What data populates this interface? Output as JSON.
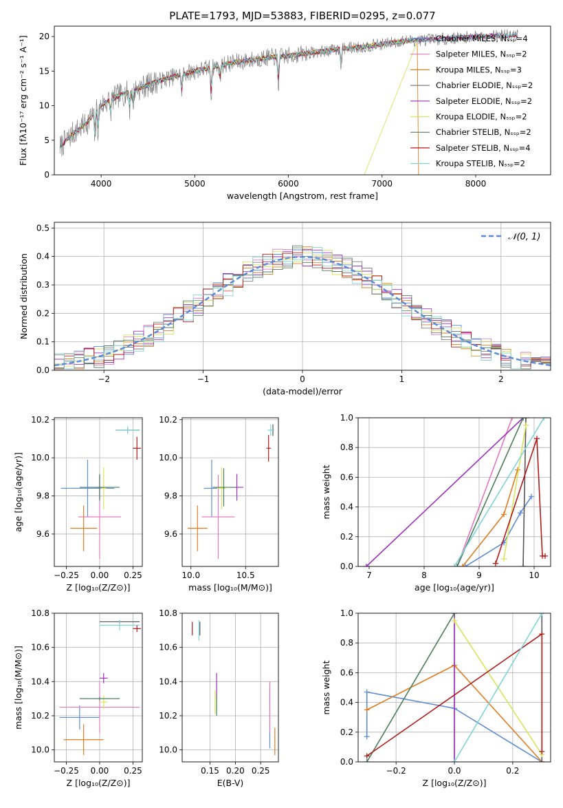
{
  "chart_data": [
    {
      "id": "spectrum",
      "type": "line",
      "title": "PLATE=1793, MJD=53883, FIBERID=0295, z=0.077",
      "xlabel": "wavelength [Angstrom, rest frame]",
      "ylabel": "Flux [fλ10⁻¹⁷ erg cm⁻² s⁻¹ A⁻¹]",
      "xlim": [
        3500,
        8800
      ],
      "ylim": [
        0,
        21.5
      ],
      "xticks": [
        4000,
        5000,
        6000,
        7000,
        8000
      ],
      "yticks": [
        0,
        5,
        10,
        15,
        20
      ],
      "grid": false,
      "legend_position": "top-right",
      "data_continuum": {
        "x": [
          3560,
          3700,
          3850,
          3950,
          4050,
          4200,
          4400,
          4600,
          4800,
          5000,
          5200,
          5400,
          5600,
          5800,
          6000,
          6200,
          6400,
          6600,
          6800,
          7000,
          7200,
          7400,
          7600,
          7800,
          8000,
          8200,
          8450
        ],
        "y": [
          4.0,
          6.0,
          7.5,
          9.5,
          10.5,
          11.5,
          12.5,
          13.5,
          14.3,
          15.0,
          15.6,
          16.2,
          16.6,
          17.0,
          17.2,
          17.6,
          17.9,
          18.3,
          18.5,
          18.9,
          19.3,
          19.5,
          19.6,
          19.8,
          20.0,
          20.1,
          20.2
        ]
      },
      "series": [
        {
          "name": "Chabrier MILES, Nₛₛₚ=4",
          "color": "#5b8ad6"
        },
        {
          "name": "Salpeter MILES, Nₛₛₚ=2",
          "color": "#e377c2"
        },
        {
          "name": "Kroupa MILES, Nₛₛₚ=3",
          "color": "#e07b20"
        },
        {
          "name": "Chabrier ELODIE, Nₛₛₚ=2",
          "color": "#7f7f7f"
        },
        {
          "name": "Salpeter ELODIE, Nₛₛₚ=2",
          "color": "#9b30c0"
        },
        {
          "name": "Kroupa ELODIE, Nₛₛₚ=2",
          "color": "#d8e35a"
        },
        {
          "name": "Chabrier STELIB, Nₛₛₚ=2",
          "color": "#4a7c59"
        },
        {
          "name": "Salpeter STELIB, Nₛₛₚ=4",
          "color": "#b01818"
        },
        {
          "name": "Kroupa STELIB, Nₛₛₚ=2",
          "color": "#7fd4d8"
        }
      ]
    },
    {
      "id": "residuals",
      "type": "line",
      "xlabel": "(data-model)/error",
      "ylabel": "Normed distribution",
      "xlim": [
        -2.5,
        2.5
      ],
      "ylim": [
        0,
        0.52
      ],
      "xticks": [
        -2,
        -1,
        0,
        1,
        2
      ],
      "yticks": [
        0.0,
        0.1,
        0.2,
        0.3,
        0.4,
        0.5
      ],
      "grid": true,
      "legend_position": "top-right",
      "reference": {
        "name": "𝒩(0, 1)",
        "mean": 0,
        "sigma": 1,
        "color": "#5b8ad6",
        "style": "dashed"
      },
      "histograms": "step histograms for each of the nine model fits, closely following the unit Gaussian"
    },
    {
      "id": "age-vs-Z",
      "type": "scatter",
      "xlabel": "Z [log₁₀(Z/Z⊙)]",
      "ylabel": "age  [log₁₀(age/yr)]",
      "xlim": [
        -0.34,
        0.32
      ],
      "ylim": [
        9.43,
        10.21
      ],
      "xticks": [
        -0.25,
        0.0,
        0.25
      ],
      "yticks": [
        9.6,
        9.8,
        10.0,
        10.2
      ],
      "grid": true,
      "points": [
        {
          "series": "Chabrier MILES",
          "x": -0.09,
          "xerr": 0.2,
          "y": 9.84,
          "yerr": 0.15,
          "color": "#5b8ad6"
        },
        {
          "series": "Salpeter MILES",
          "x": 0.0,
          "xerr": 0.16,
          "y": 9.69,
          "yerr": 0.22,
          "color": "#e377c2"
        },
        {
          "series": "Kroupa MILES",
          "x": -0.12,
          "xerr": 0.1,
          "y": 9.63,
          "yerr": 0.12,
          "color": "#e07b20"
        },
        {
          "series": "Chabrier ELODIE",
          "x": 0.21,
          "xerr": 0.09,
          "y": 10.145,
          "yerr": 0.01,
          "color": "#555555"
        },
        {
          "series": "Salpeter ELODIE",
          "x": 0.0,
          "xerr": 0.03,
          "y": 9.845,
          "yerr": 0.06,
          "color": "#9b30c0"
        },
        {
          "series": "Kroupa ELODIE",
          "x": 0.03,
          "xerr": 0.02,
          "y": 9.84,
          "yerr": 0.11,
          "color": "#d8e35a"
        },
        {
          "series": "Chabrier STELIB",
          "x": 0.0,
          "xerr": 0.15,
          "y": 9.845,
          "yerr": 0.07,
          "color": "#4a7c59"
        },
        {
          "series": "Salpeter STELIB",
          "x": 0.28,
          "xerr": 0.03,
          "y": 10.05,
          "yerr": 0.06,
          "color": "#b01818"
        },
        {
          "series": "Kroupa STELIB",
          "x": 0.21,
          "xerr": 0.09,
          "y": 10.145,
          "yerr": 0.02,
          "color": "#7fd4d8"
        }
      ]
    },
    {
      "id": "age-vs-mass",
      "type": "scatter",
      "xlabel": "mass [log₁₀(M/M⊙)]",
      "xlim": [
        9.92,
        10.8
      ],
      "ylim": [
        9.43,
        10.21
      ],
      "xticks": [
        10.0,
        10.5
      ],
      "yticks": [
        9.6,
        9.8,
        10.0,
        10.2
      ],
      "grid": true,
      "points": [
        {
          "series": "Chabrier MILES",
          "x": 10.19,
          "xerr": 0.07,
          "y": 9.84,
          "yerr": 0.15,
          "color": "#5b8ad6"
        },
        {
          "series": "Salpeter MILES",
          "x": 10.25,
          "xerr": 0.15,
          "y": 9.69,
          "yerr": 0.22,
          "color": "#e377c2"
        },
        {
          "series": "Kroupa MILES",
          "x": 10.06,
          "xerr": 0.09,
          "y": 9.63,
          "yerr": 0.12,
          "color": "#e07b20"
        },
        {
          "series": "Chabrier ELODIE",
          "x": 10.75,
          "xerr": 0.01,
          "y": 10.145,
          "yerr": 0.03,
          "color": "#555555"
        },
        {
          "series": "Salpeter ELODIE",
          "x": 10.42,
          "xerr": 0.06,
          "y": 9.845,
          "yerr": 0.07,
          "color": "#9b30c0"
        },
        {
          "series": "Kroupa ELODIE",
          "x": 10.28,
          "xerr": 0.04,
          "y": 9.84,
          "yerr": 0.11,
          "color": "#d8e35a"
        },
        {
          "series": "Chabrier STELIB",
          "x": 10.3,
          "xerr": 0.1,
          "y": 9.845,
          "yerr": 0.1,
          "color": "#4a7c59"
        },
        {
          "series": "Salpeter STELIB",
          "x": 10.71,
          "xerr": 0.02,
          "y": 10.05,
          "yerr": 0.07,
          "color": "#b01818"
        },
        {
          "series": "Kroupa STELIB",
          "x": 10.73,
          "xerr": 0.03,
          "y": 10.145,
          "yerr": 0.03,
          "color": "#7fd4d8"
        }
      ]
    },
    {
      "id": "mass-weight-vs-age",
      "type": "line",
      "xlabel": "age  [log₁₀(age/yr)]",
      "ylabel": "mass weight",
      "xlim": [
        6.8,
        10.3
      ],
      "ylim": [
        0,
        1.0
      ],
      "xticks": [
        7,
        8,
        9,
        10
      ],
      "yticks": [
        0.0,
        0.2,
        0.4,
        0.6,
        0.8,
        1.0
      ],
      "grid": true,
      "series": [
        {
          "name": "Chabrier MILES",
          "color": "#5b8ad6",
          "x": [
            8.75,
            9.45,
            9.75,
            9.95
          ],
          "y": [
            0.0,
            0.16,
            0.36,
            0.47
          ]
        },
        {
          "name": "Salpeter MILES",
          "color": "#e377c2",
          "x": [
            8.6,
            9.6
          ],
          "y": [
            0.0,
            1.0
          ]
        },
        {
          "name": "Kroupa MILES",
          "color": "#e07b20",
          "x": [
            8.7,
            9.45,
            9.7
          ],
          "y": [
            0.0,
            0.35,
            0.65
          ]
        },
        {
          "name": "Chabrier ELODIE",
          "color": "#555555",
          "x": [
            9.8,
            9.85
          ],
          "y": [
            0.0,
            1.0
          ]
        },
        {
          "name": "Salpeter ELODIE",
          "color": "#9b30c0",
          "x": [
            6.95,
            9.8
          ],
          "y": [
            0.0,
            1.0
          ]
        },
        {
          "name": "Kroupa ELODIE",
          "color": "#d8e35a",
          "x": [
            9.45,
            9.85
          ],
          "y": [
            0.05,
            0.95
          ]
        },
        {
          "name": "Chabrier STELIB",
          "color": "#4a7c59",
          "x": [
            8.6,
            9.8
          ],
          "y": [
            0.0,
            1.0
          ]
        },
        {
          "name": "Salpeter STELIB",
          "color": "#b01818",
          "x": [
            9.3,
            10.05,
            10.15,
            10.2
          ],
          "y": [
            0.02,
            0.86,
            0.07,
            0.07
          ]
        },
        {
          "name": "Kroupa STELIB",
          "color": "#7fd4d8",
          "x": [
            8.55,
            10.18
          ],
          "y": [
            0.0,
            1.0
          ]
        }
      ]
    },
    {
      "id": "mass-vs-Z",
      "type": "scatter",
      "xlabel": "Z [log₁₀(Z/Z⊙)]",
      "ylabel": "mass [log₁₀(M/M⊙)]",
      "xlim": [
        -0.34,
        0.32
      ],
      "ylim": [
        9.93,
        10.8
      ],
      "xticks": [
        -0.25,
        0.0,
        0.25
      ],
      "yticks": [
        10.0,
        10.2,
        10.4,
        10.6,
        10.8
      ],
      "grid": true,
      "points": [
        {
          "series": "Chabrier MILES",
          "x": -0.15,
          "xerr": 0.15,
          "y": 10.19,
          "yerr": 0.07,
          "color": "#5b8ad6"
        },
        {
          "series": "Salpeter MILES",
          "x": 0.0,
          "xerr": 0.3,
          "y": 10.25,
          "yerr": 0.15,
          "color": "#e377c2"
        },
        {
          "series": "Kroupa MILES",
          "x": -0.12,
          "xerr": 0.15,
          "y": 10.06,
          "yerr": 0.09,
          "color": "#e07b20"
        },
        {
          "series": "Chabrier ELODIE",
          "x": 0.15,
          "xerr": 0.15,
          "y": 10.75,
          "yerr": 0.01,
          "color": "#555555"
        },
        {
          "series": "Salpeter ELODIE",
          "x": 0.03,
          "xerr": 0.03,
          "y": 10.42,
          "yerr": 0.03,
          "color": "#9b30c0"
        },
        {
          "series": "Kroupa ELODIE",
          "x": 0.03,
          "xerr": 0.03,
          "y": 10.28,
          "yerr": 0.04,
          "color": "#d8e35a"
        },
        {
          "series": "Chabrier STELIB",
          "x": 0.0,
          "xerr": 0.15,
          "y": 10.3,
          "yerr": 0.01,
          "color": "#4a7c59"
        },
        {
          "series": "Salpeter STELIB",
          "x": 0.28,
          "xerr": 0.03,
          "y": 10.71,
          "yerr": 0.02,
          "color": "#b01818"
        },
        {
          "series": "Kroupa STELIB",
          "x": 0.15,
          "xerr": 0.15,
          "y": 10.73,
          "yerr": 0.03,
          "color": "#7fd4d8"
        }
      ]
    },
    {
      "id": "mass-vs-ebv",
      "type": "scatter",
      "xlabel": "E(B-V)",
      "xlim": [
        0.095,
        0.285
      ],
      "ylim": [
        9.93,
        10.8
      ],
      "xticks": [
        0.15,
        0.2,
        0.25
      ],
      "yticks": [
        10.0,
        10.2,
        10.4,
        10.6,
        10.8
      ],
      "grid": true,
      "points": [
        {
          "series": "Chabrier MILES",
          "x": 0.268,
          "xerr": 0.0,
          "y": 10.19,
          "yerr": 0.18,
          "color": "#5b8ad6"
        },
        {
          "series": "Salpeter MILES",
          "x": 0.268,
          "xerr": 0.0,
          "y": 10.25,
          "yerr": 0.15,
          "color": "#e377c2"
        },
        {
          "series": "Kroupa MILES",
          "x": 0.278,
          "xerr": 0.0,
          "y": 10.05,
          "yerr": 0.08,
          "color": "#e07b20"
        },
        {
          "series": "Chabrier ELODIE",
          "x": 0.13,
          "xerr": 0.0,
          "y": 10.71,
          "yerr": 0.04,
          "color": "#555555"
        },
        {
          "series": "Salpeter ELODIE",
          "x": 0.163,
          "xerr": 0.0,
          "y": 10.37,
          "yerr": 0.08,
          "color": "#9b30c0"
        },
        {
          "series": "Kroupa ELODIE",
          "x": 0.16,
          "xerr": 0.0,
          "y": 10.28,
          "yerr": 0.07,
          "color": "#d8e35a"
        },
        {
          "series": "Chabrier STELIB",
          "x": 0.163,
          "xerr": 0.0,
          "y": 10.26,
          "yerr": 0.06,
          "color": "#4a7c59"
        },
        {
          "series": "Salpeter STELIB",
          "x": 0.115,
          "xerr": 0.0,
          "y": 10.71,
          "yerr": 0.04,
          "color": "#b01818"
        },
        {
          "series": "Kroupa STELIB",
          "x": 0.128,
          "xerr": 0.0,
          "y": 10.7,
          "yerr": 0.06,
          "color": "#7fd4d8"
        }
      ]
    },
    {
      "id": "mass-weight-vs-Z",
      "type": "line",
      "xlabel": "Z [log₁₀(Z/Z⊙)]",
      "ylabel": "mass weight",
      "xlim": [
        -0.33,
        0.33
      ],
      "ylim": [
        0,
        1.0
      ],
      "xticks": [
        -0.2,
        0.0,
        0.2
      ],
      "yticks": [
        0.0,
        0.2,
        0.4,
        0.6,
        0.8,
        1.0
      ],
      "grid": true,
      "series": [
        {
          "name": "Chabrier MILES",
          "color": "#5b8ad6",
          "x": [
            -0.3,
            -0.3,
            0.0,
            0.3
          ],
          "y": [
            0.17,
            0.47,
            0.36,
            0.0
          ]
        },
        {
          "name": "Salpeter MILES",
          "color": "#e377c2",
          "x": [
            0.0,
            0.0
          ],
          "y": [
            0.0,
            1.0
          ]
        },
        {
          "name": "Kroupa MILES",
          "color": "#e07b20",
          "x": [
            -0.3,
            0.0,
            0.3
          ],
          "y": [
            0.35,
            0.65,
            0.0
          ]
        },
        {
          "name": "Chabrier ELODIE",
          "color": "#555555",
          "x": [
            0.3,
            0.3
          ],
          "y": [
            0.0,
            1.0
          ]
        },
        {
          "name": "Salpeter ELODIE",
          "color": "#9b30c0",
          "x": [
            0.0,
            0.0
          ],
          "y": [
            0.0,
            1.0
          ]
        },
        {
          "name": "Kroupa ELODIE",
          "color": "#d8e35a",
          "x": [
            0.0,
            0.3
          ],
          "y": [
            0.95,
            0.05
          ]
        },
        {
          "name": "Chabrier STELIB",
          "color": "#4a7c59",
          "x": [
            -0.3,
            0.0
          ],
          "y": [
            0.0,
            1.0
          ]
        },
        {
          "name": "Salpeter STELIB",
          "color": "#b01818",
          "x": [
            -0.3,
            0.3,
            0.3
          ],
          "y": [
            0.04,
            0.86,
            0.07
          ]
        },
        {
          "name": "Kroupa STELIB",
          "color": "#7fd4d8",
          "x": [
            0.0,
            0.3
          ],
          "y": [
            0.0,
            1.0
          ]
        }
      ]
    }
  ]
}
